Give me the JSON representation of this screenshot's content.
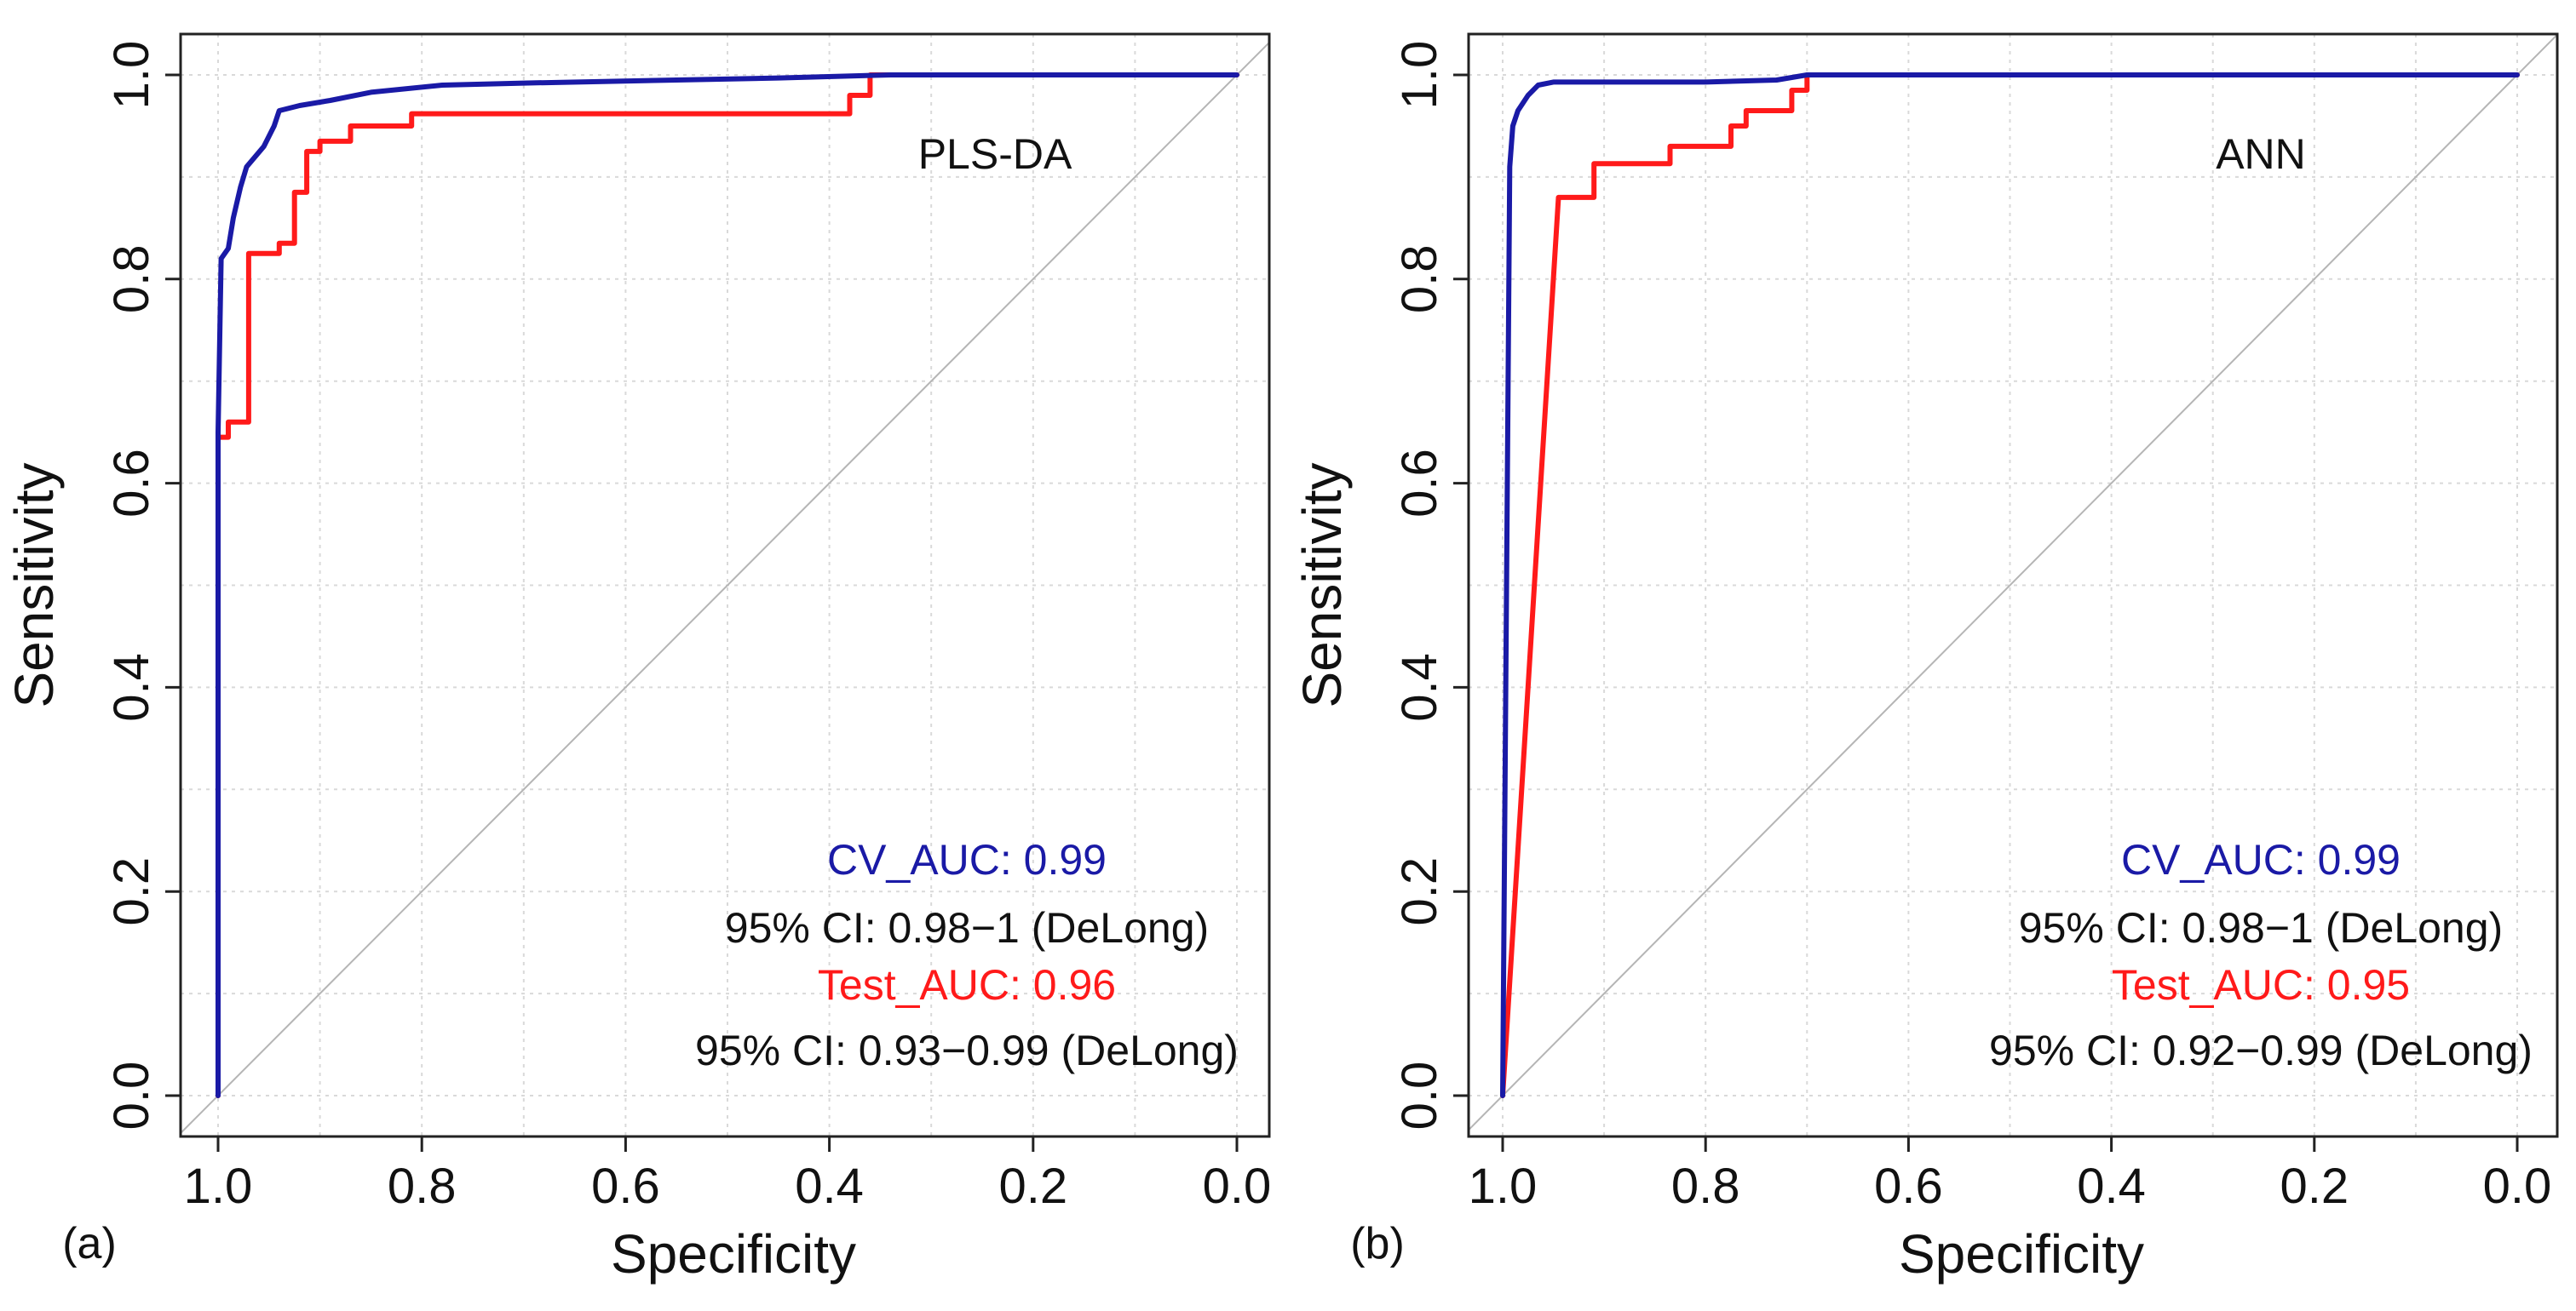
{
  "colors": {
    "cv": "#1a1aa6",
    "test": "#ff1a1a",
    "text": "#111111",
    "axis": "#222222",
    "grid": "#d9d9d9",
    "diagonal": "#b5b5b5"
  },
  "chart_data": [
    {
      "type": "line",
      "panel_label": "(a)",
      "model_label": "PLS-DA",
      "xlabel": "Specificity",
      "ylabel": "Sensitivity",
      "xlim": [
        1.0,
        0.0
      ],
      "ylim": [
        0.0,
        1.0
      ],
      "x_ticks": [
        "1.0",
        "0.8",
        "0.6",
        "0.4",
        "0.2",
        "0.0"
      ],
      "y_ticks": [
        "0.0",
        "0.2",
        "0.4",
        "0.6",
        "0.8",
        "1.0"
      ],
      "grid": true,
      "reference_line": "diagonal",
      "series": [
        {
          "name": "CV",
          "color_key": "cv",
          "points": [
            [
              1.0,
              0.0
            ],
            [
              1.0,
              0.65
            ],
            [
              0.997,
              0.82
            ],
            [
              0.99,
              0.83
            ],
            [
              0.985,
              0.86
            ],
            [
              0.978,
              0.89
            ],
            [
              0.972,
              0.91
            ],
            [
              0.955,
              0.93
            ],
            [
              0.945,
              0.95
            ],
            [
              0.94,
              0.965
            ],
            [
              0.92,
              0.97
            ],
            [
              0.89,
              0.975
            ],
            [
              0.85,
              0.983
            ],
            [
              0.78,
              0.99
            ],
            [
              0.7,
              0.992
            ],
            [
              0.55,
              0.995
            ],
            [
              0.45,
              0.997
            ],
            [
              0.34,
              1.0
            ],
            [
              0.0,
              1.0
            ]
          ]
        },
        {
          "name": "Test",
          "color_key": "test",
          "points": [
            [
              1.0,
              0.0
            ],
            [
              1.0,
              0.645
            ],
            [
              0.99,
              0.645
            ],
            [
              0.99,
              0.66
            ],
            [
              0.97,
              0.66
            ],
            [
              0.97,
              0.825
            ],
            [
              0.94,
              0.825
            ],
            [
              0.94,
              0.835
            ],
            [
              0.925,
              0.835
            ],
            [
              0.925,
              0.885
            ],
            [
              0.913,
              0.885
            ],
            [
              0.913,
              0.925
            ],
            [
              0.9,
              0.925
            ],
            [
              0.9,
              0.935
            ],
            [
              0.87,
              0.935
            ],
            [
              0.87,
              0.95
            ],
            [
              0.81,
              0.95
            ],
            [
              0.81,
              0.962
            ],
            [
              0.38,
              0.962
            ],
            [
              0.38,
              0.98
            ],
            [
              0.36,
              0.98
            ],
            [
              0.36,
              1.0
            ],
            [
              0.0,
              1.0
            ]
          ]
        }
      ],
      "annotations": {
        "cv_auc": "CV_AUC: 0.99",
        "cv_ci": "95% CI: 0.98−1 (DeLong)",
        "test_auc": "Test_AUC: 0.96",
        "test_ci": "95% CI: 0.93−0.99 (DeLong)"
      }
    },
    {
      "type": "line",
      "panel_label": "(b)",
      "model_label": "ANN",
      "xlabel": "Specificity",
      "ylabel": "Sensitivity",
      "xlim": [
        1.0,
        0.0
      ],
      "ylim": [
        0.0,
        1.0
      ],
      "x_ticks": [
        "1.0",
        "0.8",
        "0.6",
        "0.4",
        "0.2",
        "0.0"
      ],
      "y_ticks": [
        "0.0",
        "0.2",
        "0.4",
        "0.6",
        "0.8",
        "1.0"
      ],
      "grid": true,
      "reference_line": "diagonal",
      "series": [
        {
          "name": "CV",
          "color_key": "cv",
          "points": [
            [
              1.0,
              0.0
            ],
            [
              0.993,
              0.91
            ],
            [
              0.99,
              0.95
            ],
            [
              0.985,
              0.965
            ],
            [
              0.975,
              0.98
            ],
            [
              0.965,
              0.99
            ],
            [
              0.95,
              0.993
            ],
            [
              0.8,
              0.993
            ],
            [
              0.73,
              0.995
            ],
            [
              0.7,
              1.0
            ],
            [
              0.0,
              1.0
            ]
          ]
        },
        {
          "name": "Test",
          "color_key": "test",
          "points": [
            [
              1.0,
              0.0
            ],
            [
              0.945,
              0.88
            ],
            [
              0.91,
              0.88
            ],
            [
              0.91,
              0.913
            ],
            [
              0.835,
              0.913
            ],
            [
              0.835,
              0.93
            ],
            [
              0.775,
              0.93
            ],
            [
              0.775,
              0.95
            ],
            [
              0.76,
              0.95
            ],
            [
              0.76,
              0.965
            ],
            [
              0.715,
              0.965
            ],
            [
              0.715,
              0.985
            ],
            [
              0.7,
              0.985
            ],
            [
              0.7,
              1.0
            ],
            [
              0.0,
              1.0
            ]
          ]
        }
      ],
      "annotations": {
        "cv_auc": "CV_AUC: 0.99",
        "cv_ci": "95% CI: 0.98−1 (DeLong)",
        "test_auc": "Test_AUC: 0.95",
        "test_ci": "95% CI: 0.92−0.99 (DeLong)"
      }
    }
  ]
}
